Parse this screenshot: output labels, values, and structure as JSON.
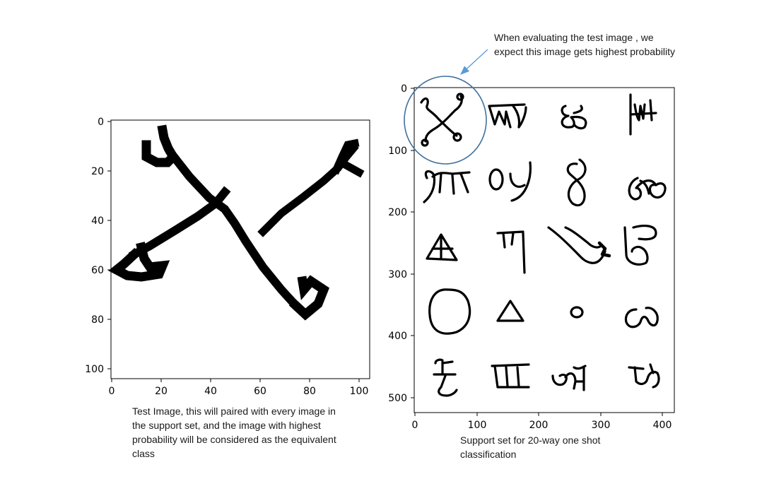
{
  "top_caption": "When evaluating the test image , we expect this image gets highest probability",
  "left_caption": "Test Image, this will paired with every image in the support set, and the image with highest probability will be considered as the equivalent class",
  "right_caption": "Support set for 20-way one shot classification",
  "test_plot": {
    "x_ticks": [
      "0",
      "20",
      "40",
      "60",
      "80",
      "100"
    ],
    "y_ticks": [
      "0",
      "20",
      "40",
      "60",
      "80",
      "100"
    ]
  },
  "support_plot": {
    "x_ticks": [
      "0",
      "100",
      "200",
      "300",
      "400"
    ],
    "y_ticks": [
      "0",
      "100",
      "200",
      "300",
      "400",
      "500"
    ],
    "grid_rows": 5,
    "grid_cols": 4
  },
  "colors": {
    "highlight_circle": "#41719c",
    "arrow": "#5b9bd5",
    "ink": "#000000"
  }
}
